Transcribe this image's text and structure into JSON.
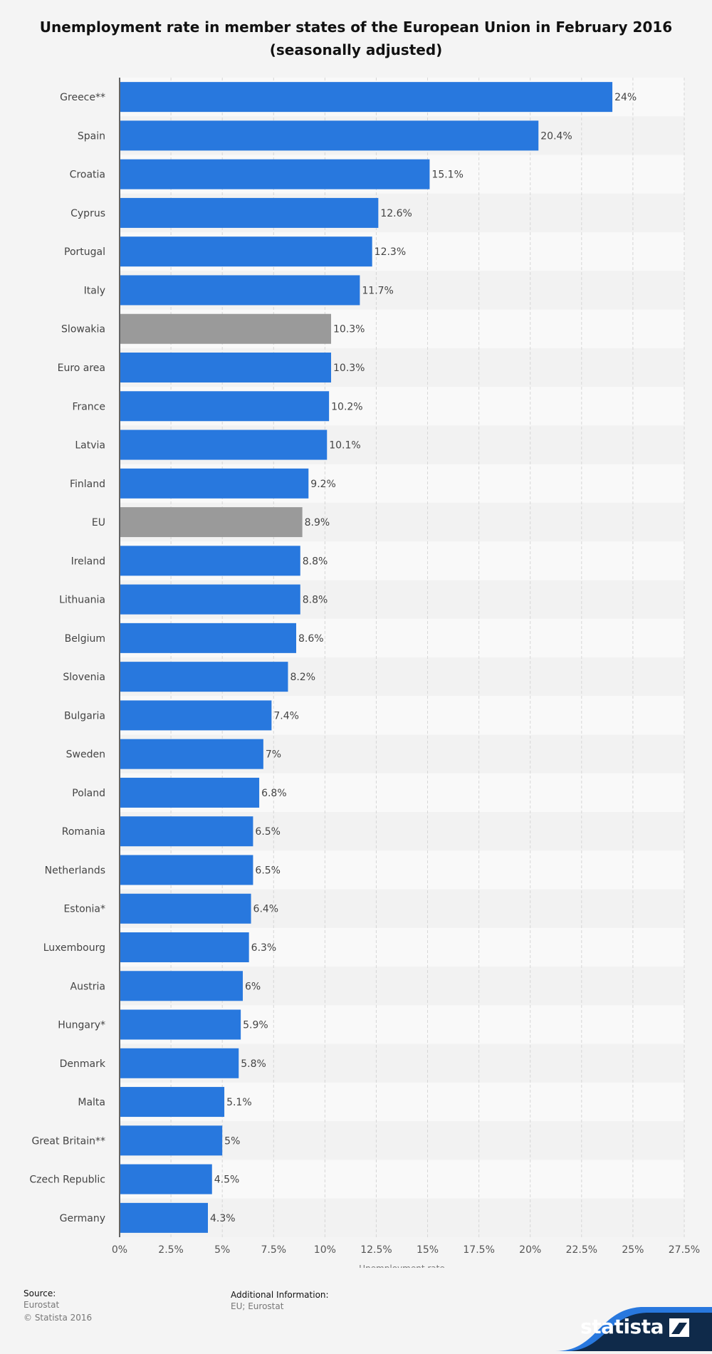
{
  "chart_data": {
    "type": "bar",
    "orientation": "horizontal",
    "title": "Unemployment rate in member states of the European Union in February 2016",
    "subtitle": "(seasonally adjusted)",
    "xlabel": "Unemployment rate",
    "xlim": [
      0,
      27.5
    ],
    "ticks": [
      "0%",
      "2.5%",
      "5%",
      "7.5%",
      "10%",
      "12.5%",
      "15%",
      "17.5%",
      "20%",
      "22.5%",
      "25%",
      "27.5%"
    ],
    "grid": true,
    "categories": [
      "Greece**",
      "Spain",
      "Croatia",
      "Cyprus",
      "Portugal",
      "Italy",
      "Slowakia",
      "Euro area",
      "France",
      "Latvia",
      "Finland",
      "EU",
      "Ireland",
      "Lithuania",
      "Belgium",
      "Slovenia",
      "Bulgaria",
      "Sweden",
      "Poland",
      "Romania",
      "Netherlands",
      "Estonia*",
      "Luxembourg",
      "Austria",
      "Hungary*",
      "Denmark",
      "Malta",
      "Great Britain**",
      "Czech Republic",
      "Germany"
    ],
    "values": [
      24,
      20.4,
      15.1,
      12.6,
      12.3,
      11.7,
      10.3,
      10.3,
      10.2,
      10.1,
      9.2,
      8.9,
      8.8,
      8.8,
      8.6,
      8.2,
      7.4,
      7,
      6.8,
      6.5,
      6.5,
      6.4,
      6.3,
      6,
      5.9,
      5.8,
      5.1,
      5,
      4.5,
      4.3
    ],
    "value_labels": [
      "24%",
      "20.4%",
      "15.1%",
      "12.6%",
      "12.3%",
      "11.7%",
      "10.3%",
      "10.3%",
      "10.2%",
      "10.1%",
      "9.2%",
      "8.9%",
      "8.8%",
      "8.8%",
      "8.6%",
      "8.2%",
      "7.4%",
      "7%",
      "6.8%",
      "6.5%",
      "6.5%",
      "6.4%",
      "6.3%",
      "6%",
      "5.9%",
      "5.8%",
      "5.1%",
      "5%",
      "4.5%",
      "4.3%"
    ],
    "highlighted": [
      "Slowakia",
      "EU"
    ],
    "colors": {
      "bar": "#2878de",
      "highlight": "#9a9a9a",
      "band_light": "#f9f9f9",
      "band_dark": "#f2f2f2"
    }
  },
  "footer": {
    "source_label": "Source:",
    "source_lines": [
      "Eurostat",
      "© Statista 2016"
    ],
    "additional_label": "Additional Information:",
    "additional_text": "EU; Eurostat",
    "brand": "statista"
  }
}
